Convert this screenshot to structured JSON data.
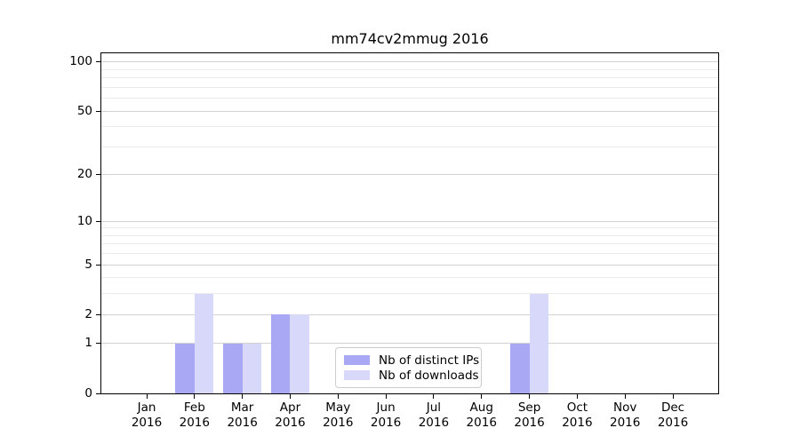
{
  "chart_data": {
    "type": "bar",
    "title": "mm74cv2mmug 2016",
    "x_year_label": "2016",
    "categories": [
      "Jan",
      "Feb",
      "Mar",
      "Apr",
      "May",
      "Jun",
      "Jul",
      "Aug",
      "Sep",
      "Oct",
      "Nov",
      "Dec"
    ],
    "series": [
      {
        "name": "Nb of distinct IPs",
        "color": "#a8a8f4",
        "values": [
          0,
          1,
          1,
          2,
          0,
          0,
          0,
          0,
          1,
          0,
          0,
          0
        ]
      },
      {
        "name": "Nb of downloads",
        "color": "#d8d8fa",
        "values": [
          0,
          3,
          1,
          2,
          0,
          0,
          0,
          0,
          3,
          0,
          0,
          0
        ]
      }
    ],
    "yscale": "log10(1+x)",
    "ylim": [
      0,
      113
    ],
    "yticks": [
      0,
      1,
      2,
      5,
      10,
      20,
      50,
      100
    ],
    "minor_gridlines": [
      3,
      4,
      6,
      7,
      8,
      9,
      30,
      40,
      60,
      70,
      80,
      90
    ],
    "grid": "horizontal",
    "legend_position": "lower center",
    "xlabel": "",
    "ylabel": ""
  },
  "colors": {
    "axis": "#000000",
    "major_grid": "#d2d2d2",
    "minor_grid": "#ebebeb",
    "legend_border": "#cccccc",
    "background": "#ffffff"
  }
}
